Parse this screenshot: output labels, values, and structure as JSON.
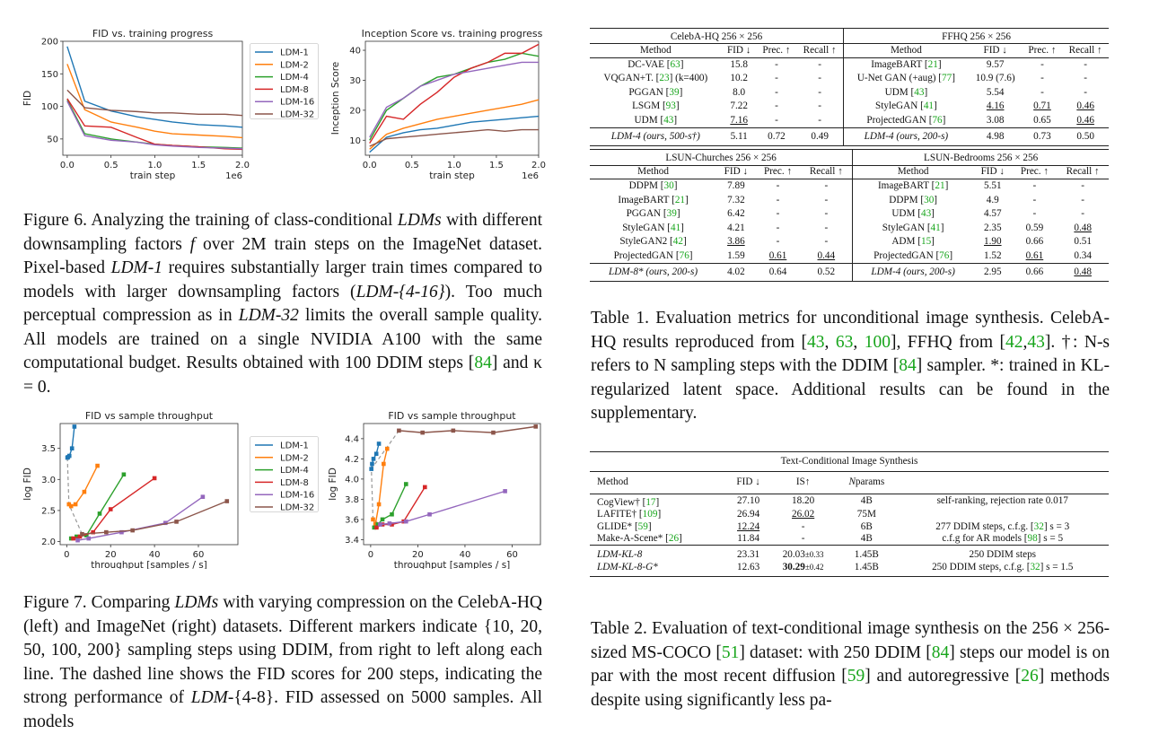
{
  "chart_data": [
    {
      "type": "line",
      "title": "FID vs. training progress",
      "xlabel": "train step",
      "x_exponent": "1e6",
      "ylabel": "FID",
      "xlim": [
        -0.05,
        2.0
      ],
      "ylim": [
        25,
        200
      ],
      "xticks": [
        0.0,
        0.5,
        1.0,
        1.5,
        2.0
      ],
      "yticks": [
        50,
        100,
        150,
        200
      ],
      "x": [
        0.0,
        0.2,
        0.5,
        0.8,
        1.0,
        1.2,
        1.5,
        1.8,
        2.0
      ],
      "series": [
        {
          "name": "LDM-1",
          "values": [
            192,
            108,
            93,
            84,
            80,
            76,
            72,
            70,
            68
          ]
        },
        {
          "name": "LDM-2",
          "values": [
            165,
            95,
            76,
            68,
            62,
            58,
            56,
            54,
            52
          ]
        },
        {
          "name": "LDM-4",
          "values": [
            110,
            58,
            50,
            45,
            42,
            40,
            38,
            37,
            36
          ]
        },
        {
          "name": "LDM-8",
          "values": [
            112,
            70,
            68,
            52,
            42,
            40,
            38,
            35,
            34
          ]
        },
        {
          "name": "LDM-16",
          "values": [
            108,
            55,
            48,
            45,
            41,
            39,
            37,
            36,
            35
          ]
        },
        {
          "name": "LDM-32",
          "values": [
            125,
            98,
            94,
            92,
            90,
            90,
            88,
            88,
            86
          ]
        }
      ]
    },
    {
      "type": "line",
      "title": "Inception Score vs. training progress",
      "xlabel": "train step",
      "x_exponent": "1e6",
      "ylabel": "Inception Score",
      "xlim": [
        -0.05,
        2.0
      ],
      "ylim": [
        5,
        43
      ],
      "xticks": [
        0.0,
        0.5,
        1.0,
        1.5,
        2.0
      ],
      "yticks": [
        10,
        20,
        30,
        40
      ],
      "x": [
        0.0,
        0.2,
        0.4,
        0.6,
        0.8,
        1.0,
        1.2,
        1.4,
        1.6,
        1.8,
        2.0
      ],
      "series": [
        {
          "name": "LDM-1",
          "values": [
            6,
            11,
            12.5,
            13.5,
            14,
            15,
            16,
            16.5,
            17,
            17.5,
            18
          ]
        },
        {
          "name": "LDM-2",
          "values": [
            7,
            12,
            14,
            15.5,
            17,
            18,
            19,
            20,
            21,
            22,
            23.5
          ]
        },
        {
          "name": "LDM-4",
          "values": [
            10,
            20,
            24,
            28,
            31,
            32,
            34,
            36,
            37,
            39,
            38
          ]
        },
        {
          "name": "LDM-8",
          "values": [
            9,
            18,
            17,
            22,
            26,
            31,
            34,
            36,
            39,
            39,
            42
          ]
        },
        {
          "name": "LDM-16",
          "values": [
            11,
            21,
            24,
            28,
            30,
            32,
            33,
            34,
            35,
            36,
            36
          ]
        },
        {
          "name": "LDM-32",
          "values": [
            8,
            10.5,
            11,
            11.5,
            12,
            12.5,
            13,
            13.5,
            13,
            13.5,
            13.5
          ]
        }
      ]
    },
    {
      "type": "line",
      "title": "FID vs sample throughput",
      "xlabel": "throughput [samples / s]",
      "ylabel": "log FID",
      "xlim": [
        -3,
        78
      ],
      "ylim": [
        1.95,
        3.9
      ],
      "xticks": [
        0,
        20,
        40,
        60
      ],
      "yticks": [
        2.0,
        2.5,
        3.0,
        3.5
      ],
      "series": [
        {
          "name": "LDM-1",
          "x": [
            0.3,
            0.6,
            1.2,
            2.4,
            3.5
          ],
          "values": [
            3.35,
            3.36,
            3.38,
            3.5,
            3.85
          ]
        },
        {
          "name": "LDM-2",
          "x": [
            1.0,
            2.0,
            4.0,
            8.0,
            14.0
          ],
          "values": [
            2.6,
            2.57,
            2.6,
            2.8,
            3.22
          ]
        },
        {
          "name": "LDM-4",
          "x": [
            2.0,
            4.5,
            9.0,
            15.0,
            26.0
          ],
          "values": [
            2.05,
            2.08,
            2.1,
            2.45,
            3.08
          ]
        },
        {
          "name": "LDM-8",
          "x": [
            3.0,
            6.0,
            12.0,
            20.0,
            40.0
          ],
          "values": [
            2.05,
            2.08,
            2.15,
            2.52,
            3.02
          ]
        },
        {
          "name": "LDM-16",
          "x": [
            5.0,
            10.0,
            25.0,
            45.0,
            62.0
          ],
          "values": [
            2.02,
            2.05,
            2.15,
            2.3,
            2.72
          ]
        },
        {
          "name": "LDM-32",
          "x": [
            7.0,
            18.0,
            30.0,
            50.0,
            73.0
          ],
          "values": [
            2.12,
            2.15,
            2.18,
            2.32,
            2.65
          ]
        }
      ]
    },
    {
      "type": "line",
      "title": "FID vs sample throughput",
      "xlabel": "throughput [samples / s]",
      "ylabel": "log FID",
      "xlim": [
        -3,
        72
      ],
      "ylim": [
        3.35,
        4.55
      ],
      "xticks": [
        0,
        20,
        40,
        60
      ],
      "yticks": [
        3.4,
        3.6,
        3.8,
        4.0,
        4.2,
        4.4
      ],
      "series": [
        {
          "name": "LDM-1",
          "x": [
            0.3,
            0.6,
            1.2,
            2.4,
            3.5
          ],
          "values": [
            4.1,
            4.15,
            4.2,
            4.25,
            4.35
          ]
        },
        {
          "name": "LDM-2",
          "x": [
            1.0,
            2.0,
            3.5,
            5.5,
            7.0
          ],
          "values": [
            3.6,
            3.55,
            3.75,
            4.15,
            4.3
          ]
        },
        {
          "name": "LDM-4",
          "x": [
            1.5,
            3.0,
            5.0,
            9.0,
            15.0
          ],
          "values": [
            3.52,
            3.55,
            3.6,
            3.65,
            3.95
          ]
        },
        {
          "name": "LDM-8",
          "x": [
            2.5,
            5.0,
            9.0,
            14.0,
            23.0
          ],
          "values": [
            3.52,
            3.55,
            3.55,
            3.58,
            3.92
          ]
        },
        {
          "name": "LDM-16",
          "x": [
            4.0,
            8.0,
            15.0,
            25.0,
            57.0
          ],
          "values": [
            3.55,
            3.56,
            3.58,
            3.65,
            3.88
          ]
        },
        {
          "name": "LDM-32",
          "x": [
            12.0,
            22.0,
            35.0,
            52.0,
            70.0
          ],
          "values": [
            4.48,
            4.46,
            4.48,
            4.46,
            4.52
          ]
        }
      ]
    }
  ],
  "colors": {
    "LDM-1": "#1f77b4",
    "LDM-2": "#ff7f0e",
    "LDM-4": "#2ca02c",
    "LDM-8": "#d62728",
    "LDM-16": "#9467bd",
    "LDM-32": "#8c564b",
    "link": "#18a51c"
  },
  "fig6": {
    "label": "Figure 6.",
    "p1": " Analyzing the training of class-conditional ",
    "e1": "LDMs",
    "p2": " with different downsampling factors ",
    "e2": "f",
    "p3": " over 2M train steps on the ImageNet dataset. Pixel-based ",
    "e3": "LDM-1",
    "p4": " requires substantially larger train times compared to models with larger downsampling factors (",
    "e4": "LDM-{4-16}",
    "p5": "). Too much perceptual compression as in ",
    "e5": "LDM-32",
    "p6": " limits the overall sample quality. All models are trained on a single NVIDIA A100 with the same computational budget. Results obtained with 100 DDIM steps [",
    "r1": "84",
    "p7": "] and κ = 0."
  },
  "fig7": {
    "label": "Figure 7.",
    "p1": " Comparing ",
    "e1": "LDMs",
    "p2": " with varying compression on the CelebA-HQ (left) and ImageNet (right) datasets. Different markers indicate {10, 20, 50, 100, 200} sampling steps using DDIM, from right to left along each line. The dashed line shows the FID scores for 200 steps, indicating the strong performance of ",
    "e2": "LDM-",
    "p3": "{4-8}. FID assessed on 5000 samples. All models"
  },
  "table1": {
    "blocks": [
      {
        "left_title": "CelebA-HQ 256 × 256",
        "right_title": "FFHQ 256 × 256",
        "rows": [
          [
            [
              "DC-VAE [",
              "63",
              "]"
            ],
            "15.8",
            "-",
            "-",
            [
              "ImageBART [",
              "21",
              "]"
            ],
            "9.57",
            "-",
            "-"
          ],
          [
            [
              "VQGAN+T. [",
              "23",
              "] (k=400)"
            ],
            "10.2",
            "-",
            "-",
            [
              "U-Net GAN (+aug) [",
              "77",
              "]"
            ],
            "10.9 (7.6)",
            "-",
            "-"
          ],
          [
            [
              "PGGAN [",
              "39",
              "]"
            ],
            "8.0",
            "-",
            "-",
            [
              "UDM [",
              "43",
              "]"
            ],
            "5.54",
            "-",
            "-"
          ],
          [
            [
              "LSGM [",
              "93",
              "]"
            ],
            "7.22",
            "-",
            "-",
            [
              "StyleGAN [",
              "41",
              "]"
            ],
            "4.16",
            "0.71",
            "0.46"
          ],
          [
            [
              "UDM [",
              "43",
              "]"
            ],
            "7.16",
            "-",
            "-",
            [
              "ProjectedGAN [",
              "76",
              "]"
            ],
            "3.08",
            "0.65",
            "0.46"
          ]
        ],
        "ours": [
          "LDM-4 (ours, 500-s†)",
          "5.11",
          "0.72",
          "0.49",
          "LDM-4 (ours, 200-s)",
          "4.98",
          "0.73",
          "0.50"
        ]
      },
      {
        "left_title": "LSUN-Churches 256 × 256",
        "right_title": "LSUN-Bedrooms 256 × 256",
        "rows": [
          [
            [
              "DDPM [",
              "30",
              "]"
            ],
            "7.89",
            "-",
            "-",
            [
              "ImageBART [",
              "21",
              "]"
            ],
            "5.51",
            "-",
            "-"
          ],
          [
            [
              "ImageBART [",
              "21",
              "]"
            ],
            "7.32",
            "-",
            "-",
            [
              "DDPM [",
              "30",
              "]"
            ],
            "4.9",
            "-",
            "-"
          ],
          [
            [
              "PGGAN [",
              "39",
              "]"
            ],
            "6.42",
            "-",
            "-",
            [
              "UDM [",
              "43",
              "]"
            ],
            "4.57",
            "-",
            "-"
          ],
          [
            [
              "StyleGAN [",
              "41",
              "]"
            ],
            "4.21",
            "-",
            "-",
            [
              "StyleGAN [",
              "41",
              "]"
            ],
            "2.35",
            "0.59",
            "0.48"
          ],
          [
            [
              "StyleGAN2 [",
              "42",
              "]"
            ],
            "3.86",
            "-",
            "-",
            [
              "ADM [",
              "15",
              "]"
            ],
            "1.90",
            "0.66",
            "0.51"
          ],
          [
            [
              "ProjectedGAN [",
              "76",
              "]"
            ],
            "1.59",
            "0.61",
            "0.44",
            [
              "ProjectedGAN [",
              "76",
              "]"
            ],
            "1.52",
            "0.61",
            "0.34"
          ]
        ],
        "ours": [
          "LDM-8* (ours, 200-s)",
          "4.02",
          "0.64",
          "0.52",
          "LDM-4 (ours, 200-s)",
          "2.95",
          "0.66",
          "0.48"
        ]
      }
    ],
    "headers": [
      "Method",
      "FID ↓",
      "Prec. ↑",
      "Recall ↑"
    ],
    "caption": {
      "label": "Table 1.",
      "p1": " Evaluation metrics for unconditional image synthesis. CelebA-HQ results reproduced from [",
      "r1": "43",
      "r2": "63",
      "r3": "100",
      "p2": "], FFHQ from [",
      "r4": "42",
      "r5": "43",
      "p3": "]. †: N-s refers to N sampling steps with the DDIM [",
      "r6": "84",
      "p4": "] sampler. *: trained in KL-regularized latent space. Additional results can be found in the supplementary."
    }
  },
  "table2": {
    "title": "Text-Conditional Image Synthesis",
    "headers": [
      "Method",
      "FID ↓",
      "IS↑",
      "Nparams",
      ""
    ],
    "rows": [
      [
        [
          "CogView† [",
          "17",
          "]"
        ],
        "27.10",
        "18.20",
        "4B",
        [
          "self-ranking, rejection rate 0.017"
        ]
      ],
      [
        [
          "LAFITE† [",
          "109",
          "]"
        ],
        "26.94",
        "26.02",
        "75M",
        [
          ""
        ]
      ],
      [
        [
          "GLIDE* [",
          "59",
          "]"
        ],
        "12.24",
        "-",
        "6B",
        [
          "277 DDIM steps, c.f.g. [",
          "32",
          "] s = 3"
        ]
      ],
      [
        [
          "Make-A-Scene* [",
          "26",
          "]"
        ],
        "11.84",
        "-",
        "4B",
        [
          "c.f.g for AR models [",
          "98",
          "] s = 5"
        ]
      ]
    ],
    "ours": [
      [
        "LDM-KL-8",
        "23.31",
        "20.03",
        "±0.33",
        "1.45B",
        [
          "250 DDIM steps"
        ]
      ],
      [
        "LDM-KL-8-G*",
        "12.63",
        "30.29",
        "±0.42",
        "1.45B",
        [
          "250 DDIM steps, c.f.g. [",
          "32",
          "] s = 1.5"
        ]
      ]
    ],
    "caption": {
      "label": "Table 2.",
      "p1": " Evaluation of text-conditional image synthesis on the 256 × 256-sized MS-COCO [",
      "r1": "51",
      "p2": "] dataset: with 250 DDIM [",
      "r2": "84",
      "p3": "] steps our model is on par with the most recent diffusion [",
      "r3": "59",
      "p4": "] and autoregressive [",
      "r4": "26",
      "p5": "] methods despite using significantly less pa-"
    }
  }
}
